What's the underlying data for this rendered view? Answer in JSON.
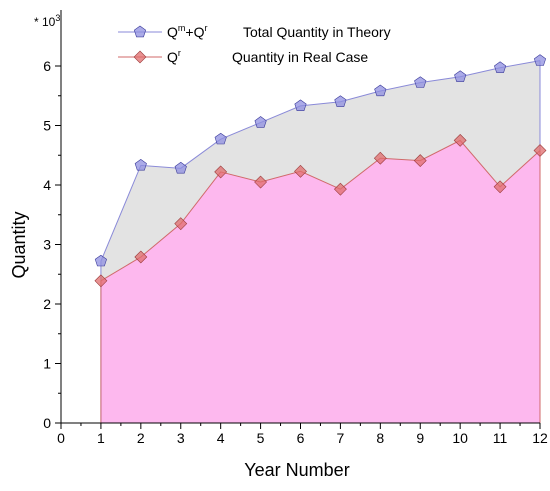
{
  "chart_data": {
    "type": "area",
    "multiplier_label": "* 10",
    "multiplier_exponent": "3",
    "xlabel": "Year Number",
    "ylabel": "Quantity",
    "xlim": [
      0,
      12
    ],
    "ylim": [
      0,
      6.5
    ],
    "x_ticks": [
      0,
      1,
      2,
      3,
      4,
      5,
      6,
      7,
      8,
      9,
      10,
      11,
      12
    ],
    "y_ticks": [
      0,
      1,
      2,
      3,
      4,
      5,
      6
    ],
    "x": [
      1,
      2,
      3,
      4,
      5,
      6,
      7,
      8,
      9,
      10,
      11,
      12
    ],
    "series": [
      {
        "legend_main": "Q",
        "legend_sup1": "m",
        "legend_mid": "+Q",
        "legend_sup2": "r",
        "legend_desc": "Total Quantity in Theory",
        "fill": "#e3e3e3",
        "line": "#8a8ad8",
        "marker_fill": "#8f8fe0",
        "values": [
          2.72,
          4.33,
          4.28,
          4.77,
          5.05,
          5.33,
          5.4,
          5.58,
          5.72,
          5.82,
          5.97,
          6.09
        ]
      },
      {
        "legend_main": "Q",
        "legend_sup1": "r",
        "legend_mid": "",
        "legend_sup2": "",
        "legend_desc": "Quantity in  Real Case",
        "fill": "#fdb8ee",
        "line": "#d06a6a",
        "marker_fill": "#e06c6c",
        "values": [
          2.39,
          2.79,
          3.35,
          4.22,
          4.05,
          4.23,
          3.93,
          4.45,
          4.41,
          4.75,
          3.97,
          4.58
        ]
      }
    ]
  }
}
